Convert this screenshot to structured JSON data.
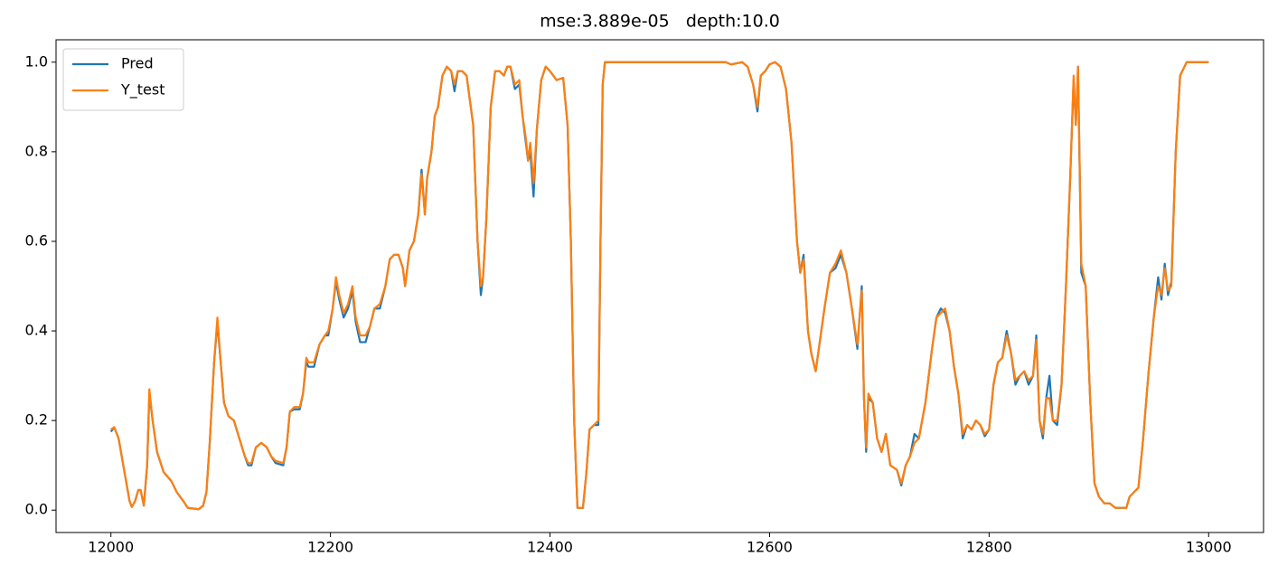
{
  "chart_data": {
    "type": "line",
    "title": "mse:3.889e-05   depth:10.0",
    "x": [
      12000,
      12003,
      12007,
      12012,
      12017,
      12019,
      12022,
      12025,
      12027,
      12030,
      12033,
      12035,
      12038,
      12042,
      12048,
      12055,
      12060,
      12066,
      12070,
      12080,
      12084,
      12087,
      12090,
      12094,
      12097,
      12100,
      12103,
      12107,
      12112,
      12117,
      12122,
      12125,
      12128,
      12132,
      12137,
      12142,
      12146,
      12150,
      12157,
      12160,
      12163,
      12167,
      12172,
      12175,
      12178,
      12180,
      12185,
      12190,
      12195,
      12198,
      12202,
      12205,
      12208,
      12212,
      12216,
      12220,
      12223,
      12227,
      12232,
      12236,
      12240,
      12245,
      12250,
      12254,
      12258,
      12262,
      12266,
      12268,
      12272,
      12276,
      12280,
      12283,
      12286,
      12288,
      12292,
      12295,
      12298,
      12302,
      12306,
      12310,
      12313,
      12316,
      12320,
      12324,
      12330,
      12334,
      12337,
      12339,
      12342,
      12346,
      12350,
      12354,
      12358,
      12361,
      12364,
      12368,
      12372,
      12375,
      12378,
      12380,
      12382,
      12385,
      12388,
      12392,
      12396,
      12400,
      12403,
      12406,
      12412,
      12416,
      12419,
      12422,
      12425,
      12430,
      12433,
      12436,
      12440,
      12444,
      12446,
      12448,
      12450,
      12560,
      12565,
      12575,
      12580,
      12585,
      12589,
      12592,
      12596,
      12600,
      12605,
      12610,
      12615,
      12620,
      12625,
      12628,
      12631,
      12635,
      12638,
      12642,
      12646,
      12650,
      12655,
      12660,
      12665,
      12670,
      12675,
      12680,
      12684,
      12686,
      12688,
      12690,
      12694,
      12698,
      12702,
      12706,
      12710,
      12716,
      12720,
      12724,
      12728,
      12732,
      12736,
      12742,
      12748,
      12752,
      12756,
      12760,
      12764,
      12768,
      12772,
      12776,
      12780,
      12784,
      12788,
      12792,
      12796,
      12800,
      12804,
      12808,
      12812,
      12816,
      12820,
      12824,
      12828,
      12832,
      12836,
      12840,
      12843,
      12846,
      12849,
      12852,
      12855,
      12858,
      12862,
      12866,
      12870,
      12874,
      12877,
      12879,
      12881,
      12884,
      12888,
      12892,
      12896,
      12900,
      12905,
      12910,
      12915,
      12925,
      12928,
      12932,
      12936,
      12940,
      12945,
      12950,
      12954,
      12957,
      12960,
      12963,
      12966,
      12970,
      12974,
      12980,
      13000
    ],
    "series": [
      {
        "name": "Pred",
        "color": "#1f77b4",
        "values": [
          0.175,
          0.185,
          0.16,
          0.09,
          0.02,
          0.007,
          0.02,
          0.045,
          0.045,
          0.01,
          0.1,
          0.26,
          0.2,
          0.13,
          0.085,
          0.065,
          0.04,
          0.02,
          0.005,
          0.002,
          0.01,
          0.04,
          0.15,
          0.33,
          0.42,
          0.33,
          0.24,
          0.21,
          0.2,
          0.16,
          0.12,
          0.1,
          0.1,
          0.14,
          0.15,
          0.14,
          0.12,
          0.105,
          0.1,
          0.14,
          0.22,
          0.225,
          0.225,
          0.26,
          0.33,
          0.32,
          0.32,
          0.37,
          0.39,
          0.39,
          0.45,
          0.51,
          0.47,
          0.43,
          0.45,
          0.49,
          0.42,
          0.375,
          0.375,
          0.41,
          0.45,
          0.45,
          0.5,
          0.56,
          0.57,
          0.57,
          0.54,
          0.5,
          0.58,
          0.6,
          0.66,
          0.76,
          0.66,
          0.74,
          0.8,
          0.88,
          0.9,
          0.97,
          0.99,
          0.98,
          0.935,
          0.98,
          0.98,
          0.97,
          0.86,
          0.6,
          0.48,
          0.52,
          0.65,
          0.9,
          0.98,
          0.98,
          0.97,
          0.99,
          0.99,
          0.94,
          0.95,
          0.88,
          0.82,
          0.78,
          0.8,
          0.7,
          0.85,
          0.96,
          0.99,
          0.98,
          0.97,
          0.96,
          0.965,
          0.86,
          0.6,
          0.2,
          0.005,
          0.005,
          0.08,
          0.18,
          0.19,
          0.19,
          0.6,
          0.95,
          1.0,
          1.0,
          0.995,
          1.0,
          0.99,
          0.95,
          0.89,
          0.97,
          0.98,
          0.995,
          1.0,
          0.99,
          0.94,
          0.82,
          0.6,
          0.53,
          0.57,
          0.4,
          0.35,
          0.31,
          0.38,
          0.45,
          0.53,
          0.54,
          0.57,
          0.53,
          0.45,
          0.36,
          0.5,
          0.25,
          0.13,
          0.25,
          0.24,
          0.16,
          0.13,
          0.17,
          0.1,
          0.09,
          0.055,
          0.1,
          0.12,
          0.17,
          0.16,
          0.24,
          0.36,
          0.43,
          0.45,
          0.44,
          0.4,
          0.32,
          0.26,
          0.16,
          0.19,
          0.18,
          0.2,
          0.19,
          0.165,
          0.18,
          0.28,
          0.33,
          0.34,
          0.4,
          0.35,
          0.28,
          0.3,
          0.31,
          0.28,
          0.3,
          0.39,
          0.2,
          0.16,
          0.25,
          0.3,
          0.2,
          0.19,
          0.28,
          0.5,
          0.75,
          0.96,
          0.86,
          0.99,
          0.53,
          0.5,
          0.25,
          0.06,
          0.03,
          0.015,
          0.015,
          0.005,
          0.005,
          0.03,
          0.04,
          0.05,
          0.15,
          0.3,
          0.43,
          0.52,
          0.47,
          0.55,
          0.48,
          0.51,
          0.8,
          0.97,
          1.0,
          1.0
        ]
      },
      {
        "name": "Y_test",
        "color": "#ff7f0e",
        "values": [
          0.18,
          0.185,
          0.16,
          0.09,
          0.02,
          0.007,
          0.02,
          0.045,
          0.045,
          0.01,
          0.1,
          0.27,
          0.2,
          0.13,
          0.085,
          0.065,
          0.04,
          0.02,
          0.005,
          0.002,
          0.01,
          0.04,
          0.15,
          0.33,
          0.43,
          0.33,
          0.24,
          0.21,
          0.2,
          0.16,
          0.12,
          0.105,
          0.105,
          0.14,
          0.15,
          0.14,
          0.12,
          0.11,
          0.105,
          0.14,
          0.22,
          0.23,
          0.23,
          0.26,
          0.34,
          0.33,
          0.33,
          0.37,
          0.39,
          0.4,
          0.45,
          0.52,
          0.48,
          0.44,
          0.46,
          0.5,
          0.43,
          0.39,
          0.39,
          0.41,
          0.45,
          0.46,
          0.5,
          0.56,
          0.57,
          0.57,
          0.54,
          0.5,
          0.58,
          0.6,
          0.66,
          0.75,
          0.66,
          0.74,
          0.8,
          0.88,
          0.9,
          0.97,
          0.99,
          0.98,
          0.95,
          0.98,
          0.98,
          0.97,
          0.86,
          0.6,
          0.5,
          0.52,
          0.65,
          0.9,
          0.98,
          0.98,
          0.97,
          0.99,
          0.99,
          0.95,
          0.96,
          0.88,
          0.83,
          0.78,
          0.82,
          0.73,
          0.85,
          0.96,
          0.99,
          0.98,
          0.97,
          0.96,
          0.965,
          0.86,
          0.6,
          0.2,
          0.005,
          0.005,
          0.08,
          0.18,
          0.19,
          0.2,
          0.6,
          0.95,
          1.0,
          1.0,
          0.995,
          1.0,
          0.99,
          0.95,
          0.9,
          0.97,
          0.98,
          0.995,
          1.0,
          0.99,
          0.94,
          0.82,
          0.6,
          0.53,
          0.56,
          0.4,
          0.35,
          0.31,
          0.38,
          0.45,
          0.53,
          0.55,
          0.58,
          0.53,
          0.45,
          0.37,
          0.49,
          0.25,
          0.14,
          0.26,
          0.24,
          0.16,
          0.13,
          0.17,
          0.1,
          0.09,
          0.06,
          0.1,
          0.12,
          0.15,
          0.16,
          0.24,
          0.36,
          0.43,
          0.44,
          0.45,
          0.4,
          0.32,
          0.26,
          0.17,
          0.19,
          0.18,
          0.2,
          0.19,
          0.17,
          0.18,
          0.28,
          0.33,
          0.34,
          0.39,
          0.35,
          0.29,
          0.3,
          0.31,
          0.29,
          0.3,
          0.38,
          0.2,
          0.17,
          0.25,
          0.25,
          0.2,
          0.2,
          0.28,
          0.5,
          0.75,
          0.97,
          0.86,
          0.99,
          0.55,
          0.5,
          0.25,
          0.06,
          0.03,
          0.015,
          0.015,
          0.005,
          0.005,
          0.03,
          0.04,
          0.05,
          0.15,
          0.3,
          0.43,
          0.5,
          0.48,
          0.54,
          0.49,
          0.5,
          0.8,
          0.97,
          1.0,
          1.0
        ]
      }
    ],
    "xlim": [
      11950,
      13050
    ],
    "xticks": [
      12000,
      12200,
      12400,
      12600,
      12800,
      13000
    ],
    "ylim": [
      -0.05,
      1.05
    ],
    "yticks": [
      {
        "value": 0,
        "label": "0.0"
      },
      0.2,
      0.4,
      0.6,
      0.8,
      {
        "value": 1,
        "label": "1.0"
      }
    ],
    "legend": "upper left"
  }
}
